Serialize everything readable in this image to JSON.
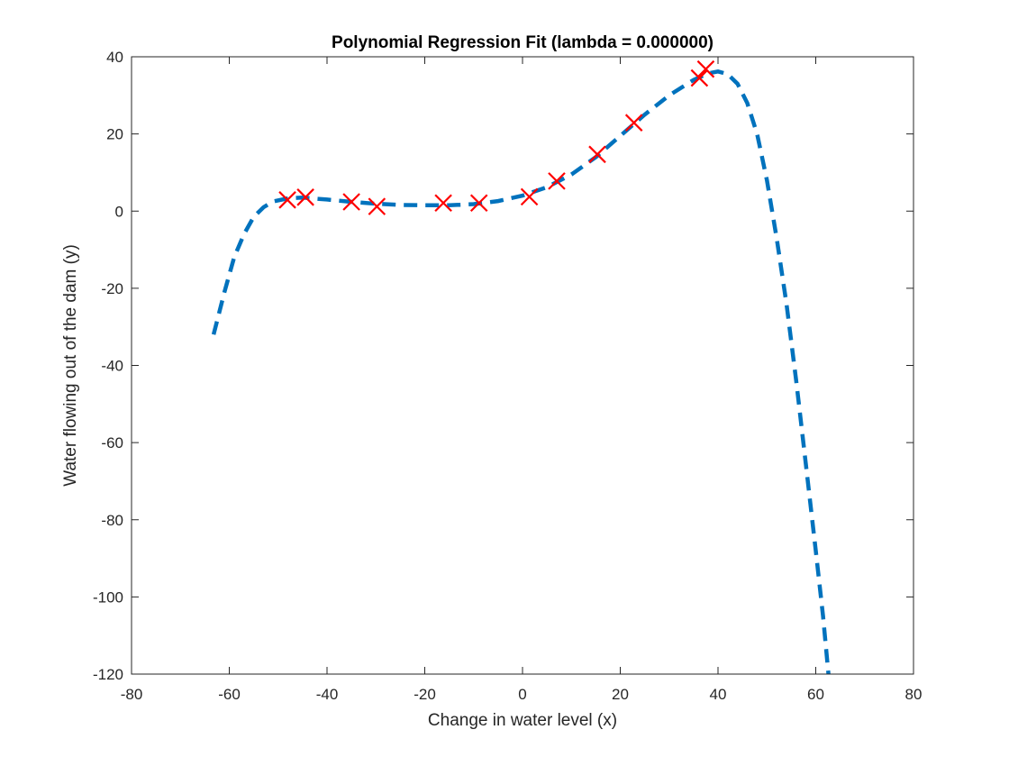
{
  "chart_data": {
    "type": "scatter",
    "title": "Polynomial Regression Fit (lambda = 0.000000)",
    "xlabel": "Change in water level (x)",
    "ylabel": "Water flowing out of the dam (y)",
    "xlim": [
      -80,
      80
    ],
    "ylim": [
      -120,
      40
    ],
    "xticks": [
      -80,
      -60,
      -40,
      -20,
      0,
      20,
      40,
      60,
      80
    ],
    "yticks": [
      -120,
      -100,
      -80,
      -60,
      -40,
      -20,
      0,
      20,
      40
    ],
    "xtick_labels": [
      "-80",
      "-60",
      "-40",
      "-20",
      "0",
      "20",
      "40",
      "60",
      "80"
    ],
    "ytick_labels": [
      "-120",
      "-100",
      "-80",
      "-60",
      "-40",
      "-20",
      "0",
      "20",
      "40"
    ],
    "grid": false,
    "series": [
      {
        "kind": "scatter",
        "marker": "x",
        "color": "#ff0000",
        "points": [
          {
            "x": -48.1,
            "y": 2.9
          },
          {
            "x": -44.4,
            "y": 3.6
          },
          {
            "x": -35.0,
            "y": 2.4
          },
          {
            "x": -29.8,
            "y": 1.2
          },
          {
            "x": -16.2,
            "y": 2.1
          },
          {
            "x": -8.9,
            "y": 2.1
          },
          {
            "x": 1.4,
            "y": 3.7
          },
          {
            "x": 7.0,
            "y": 7.8
          },
          {
            "x": 15.3,
            "y": 14.7
          },
          {
            "x": 22.8,
            "y": 22.9
          },
          {
            "x": 36.2,
            "y": 34.5
          },
          {
            "x": 37.5,
            "y": 36.8
          }
        ]
      },
      {
        "kind": "line",
        "style": "dashed",
        "color": "#0072bd",
        "points": [
          {
            "x": -63.2,
            "y": -32
          },
          {
            "x": -61.0,
            "y": -21
          },
          {
            "x": -59.0,
            "y": -12
          },
          {
            "x": -57.0,
            "y": -6
          },
          {
            "x": -55.0,
            "y": -1.5
          },
          {
            "x": -53.0,
            "y": 1.0
          },
          {
            "x": -51.0,
            "y": 2.5
          },
          {
            "x": -48.0,
            "y": 3.3
          },
          {
            "x": -45.0,
            "y": 3.5
          },
          {
            "x": -40.0,
            "y": 3.0
          },
          {
            "x": -35.0,
            "y": 2.4
          },
          {
            "x": -30.0,
            "y": 1.9
          },
          {
            "x": -25.0,
            "y": 1.6
          },
          {
            "x": -20.0,
            "y": 1.5
          },
          {
            "x": -15.0,
            "y": 1.5
          },
          {
            "x": -10.0,
            "y": 1.8
          },
          {
            "x": -5.0,
            "y": 2.6
          },
          {
            "x": 0.0,
            "y": 4.0
          },
          {
            "x": 5.0,
            "y": 6.2
          },
          {
            "x": 10.0,
            "y": 9.5
          },
          {
            "x": 15.0,
            "y": 14.0
          },
          {
            "x": 20.0,
            "y": 19.5
          },
          {
            "x": 25.0,
            "y": 25.0
          },
          {
            "x": 30.0,
            "y": 30.0
          },
          {
            "x": 35.0,
            "y": 34.0
          },
          {
            "x": 38.0,
            "y": 35.7
          },
          {
            "x": 40.0,
            "y": 36.2
          },
          {
            "x": 42.0,
            "y": 35.5
          },
          {
            "x": 44.0,
            "y": 33.0
          },
          {
            "x": 46.0,
            "y": 28.0
          },
          {
            "x": 48.0,
            "y": 20.0
          },
          {
            "x": 50.0,
            "y": 8.0
          },
          {
            "x": 52.0,
            "y": -7.0
          },
          {
            "x": 54.0,
            "y": -24.0
          },
          {
            "x": 56.0,
            "y": -44.0
          },
          {
            "x": 58.0,
            "y": -66.0
          },
          {
            "x": 60.0,
            "y": -88.0
          },
          {
            "x": 61.5,
            "y": -105.0
          },
          {
            "x": 62.6,
            "y": -120.0
          }
        ]
      }
    ]
  }
}
